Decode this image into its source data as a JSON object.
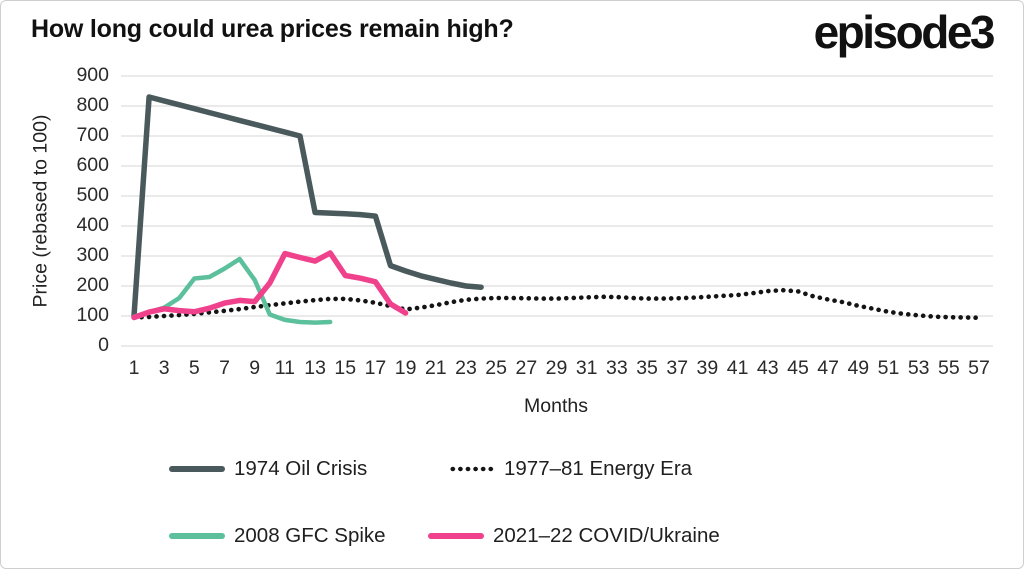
{
  "header": {
    "title": "How long could urea prices remain high?",
    "logo": "episode3"
  },
  "chart_data": {
    "type": "line",
    "title": "How long could urea prices remain high?",
    "xlabel": "Months",
    "ylabel": "Price (rebased to 100)",
    "xlim": [
      1,
      58
    ],
    "ylim": [
      0,
      900
    ],
    "grid": "horizontal",
    "legend_position": "bottom",
    "x_ticks": [
      1,
      3,
      5,
      7,
      9,
      11,
      13,
      15,
      17,
      19,
      21,
      23,
      25,
      27,
      29,
      31,
      33,
      35,
      37,
      39,
      41,
      43,
      45,
      47,
      49,
      51,
      53,
      55,
      57
    ],
    "y_ticks": [
      0,
      100,
      200,
      300,
      400,
      500,
      600,
      700,
      800,
      900
    ],
    "series": [
      {
        "name": "1974 Oil Crisis",
        "color": "#4a5a5c",
        "style": "solid",
        "width": 5.5,
        "start_month": 1,
        "values": [
          100,
          830,
          817,
          804,
          791,
          778,
          765,
          752,
          739,
          726,
          713,
          700,
          445,
          443,
          441,
          438,
          433,
          268,
          250,
          234,
          222,
          210,
          200,
          196
        ]
      },
      {
        "name": "1977–81 Energy Era",
        "color": "#141414",
        "style": "dotted",
        "width": 4.6,
        "start_month": 1,
        "values": [
          95,
          97,
          100,
          103,
          107,
          112,
          117,
          123,
          130,
          136,
          142,
          148,
          153,
          157,
          157,
          152,
          144,
          133,
          122,
          128,
          136,
          146,
          154,
          158,
          160,
          160,
          159,
          158,
          158,
          160,
          162,
          164,
          163,
          160,
          158,
          158,
          159,
          161,
          164,
          167,
          170,
          176,
          183,
          186,
          182,
          166,
          155,
          146,
          134,
          124,
          114,
          107,
          102,
          98,
          96,
          95,
          94
        ]
      },
      {
        "name": "2008 GFC Spike",
        "color": "#5cc09c",
        "style": "solid",
        "width": 4.5,
        "start_month": 1,
        "values": [
          98,
          113,
          128,
          160,
          225,
          230,
          258,
          290,
          220,
          105,
          87,
          80,
          78,
          80
        ]
      },
      {
        "name": "2021–22 COVID/Ukraine",
        "color": "#f0418c",
        "style": "solid",
        "width": 5.5,
        "start_month": 1,
        "values": [
          95,
          113,
          124,
          118,
          114,
          126,
          143,
          152,
          148,
          210,
          308,
          295,
          283,
          310,
          235,
          226,
          214,
          140,
          110
        ]
      }
    ],
    "colors": {
      "gridline": "#e3e3e3",
      "tick_label": "#2b2b2b",
      "title": "#111111"
    }
  }
}
